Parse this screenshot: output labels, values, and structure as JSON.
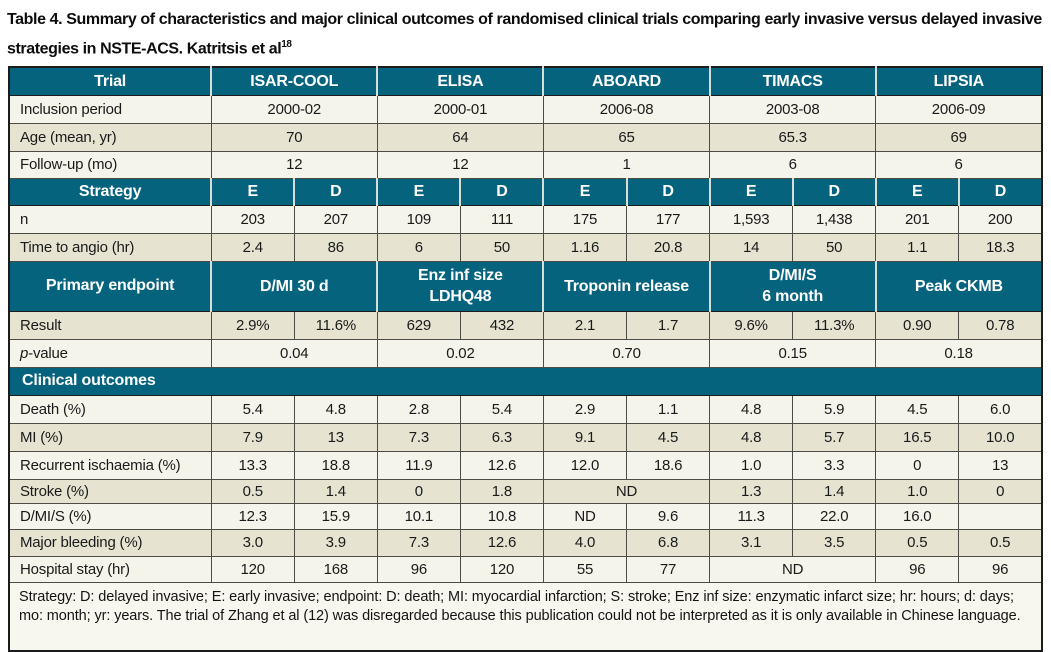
{
  "title": {
    "text": "Table 4. Summary of characteristics and major clinical outcomes of randomised clinical trials comparing early invasive versus delayed invasive strategies in NSTE-ACS. Katritsis et al",
    "superscript": "18"
  },
  "colors": {
    "teal_header": "#06637e",
    "beige_row": "#e6e4d1",
    "offwhite_row": "#f5f4eb",
    "header_text": "#ffffff",
    "body_text": "#1a1a1a"
  },
  "rows": {
    "trial_header": {
      "label": "Trial",
      "cells": [
        "ISAR-COOL",
        "ELISA",
        "ABOARD",
        "TIMACS",
        "LIPSIA"
      ]
    },
    "inclusion": {
      "label": "Inclusion period",
      "cells": [
        "2000-02",
        "2000-01",
        "2006-08",
        "2003-08",
        "2006-09"
      ]
    },
    "age": {
      "label": "Age (mean, yr)",
      "cells": [
        "70",
        "64",
        "65",
        "65.3",
        "69"
      ]
    },
    "followup": {
      "label": "Follow-up (mo)",
      "cells": [
        "12",
        "12",
        "1",
        "6",
        "6"
      ]
    },
    "strategy": {
      "label": "Strategy",
      "cells": [
        "E",
        "D",
        "E",
        "D",
        "E",
        "D",
        "E",
        "D",
        "E",
        "D"
      ]
    },
    "n": {
      "label": "n",
      "cells": [
        "203",
        "207",
        "109",
        "111",
        "175",
        "177",
        "1,593",
        "1,438",
        "201",
        "200"
      ]
    },
    "time_to_angio": {
      "label": "Time to angio (hr)",
      "cells": [
        "2.4",
        "86",
        "6",
        "50",
        "1.16",
        "20.8",
        "14",
        "50",
        "1.1",
        "18.3"
      ]
    },
    "primary_endpoint": {
      "label": "Primary endpoint",
      "cells": [
        "D/MI 30 d",
        "Enz inf size\nLDHQ48",
        "Troponin release",
        "D/MI/S\n6 month",
        "Peak CKMB"
      ]
    },
    "result": {
      "label": "Result",
      "cells": [
        "2.9%",
        "11.6%",
        "629",
        "432",
        "2.1",
        "1.7",
        "9.6%",
        "11.3%",
        "0.90",
        "0.78"
      ]
    },
    "p_value": {
      "label_p": "p",
      "label_rest": "-value",
      "cells": [
        "0.04",
        "0.02",
        "0.70",
        "0.15",
        "0.18"
      ]
    },
    "clinical_outcomes": {
      "label": "Clinical outcomes"
    },
    "death": {
      "label": "Death (%)",
      "cells": [
        "5.4",
        "4.8",
        "2.8",
        "5.4",
        "2.9",
        "1.1",
        "4.8",
        "5.9",
        "4.5",
        "6.0"
      ]
    },
    "mi": {
      "label": "MI (%)",
      "cells": [
        "7.9",
        "13",
        "7.3",
        "6.3",
        "9.1",
        "4.5",
        "4.8",
        "5.7",
        "16.5",
        "10.0"
      ]
    },
    "recurrent_ischaemia": {
      "label": "Recurrent ischaemia (%)",
      "cells": [
        "13.3",
        "18.8",
        "11.9",
        "12.6",
        "12.0",
        "18.6",
        "1.0",
        "3.3",
        "0",
        "13"
      ]
    },
    "stroke": {
      "label": "Stroke (%)",
      "cells": [
        "0.5",
        "1.4",
        "0",
        "1.8",
        "ND",
        "1.3",
        "1.4",
        "1.0",
        "0"
      ]
    },
    "dmis": {
      "label": "D/MI/S (%)",
      "cells": [
        "12.3",
        "15.9",
        "10.1",
        "10.8",
        "ND",
        "9.6",
        "11.3",
        "22.0",
        "16.0",
        ""
      ]
    },
    "major_bleeding": {
      "label": "Major bleeding (%)",
      "cells": [
        "3.0",
        "3.9",
        "7.3",
        "12.6",
        "4.0",
        "6.8",
        "3.1",
        "3.5",
        "0.5",
        "0.5"
      ]
    },
    "hospital_stay": {
      "label": "Hospital stay (hr)",
      "cells": [
        "120",
        "168",
        "96",
        "120",
        "55",
        "77",
        "ND",
        "96",
        "96"
      ]
    },
    "footnote": "Strategy: D: delayed invasive; E: early invasive; endpoint: D: death; MI: myocardial infarction; S: stroke; Enz inf size: enzymatic infarct size; hr: hours; d: days; mo: month; yr: years. The trial of Zhang et al (12) was disregarded because this publication could not be interpreted as it is only available in Chinese language."
  }
}
